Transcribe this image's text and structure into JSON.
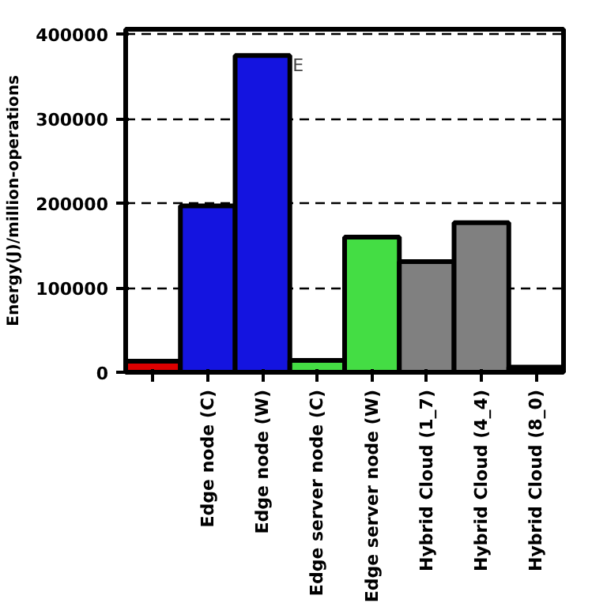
{
  "chart_data": {
    "type": "bar",
    "ylabel": "Energy(J)/million-operations",
    "categories": [
      null,
      "Edge node (C)",
      "Edge node (W)",
      "Edge server node (C)",
      "Edge server node (W)",
      "Hybrid Cloud (1_7)",
      "Hybrid Cloud (4_4)",
      "Hybrid Cloud (8_0)"
    ],
    "values": [
      13000,
      197000,
      375000,
      14000,
      160000,
      131000,
      177000,
      6000
    ],
    "colors": [
      "#dd0000",
      "#1414e0",
      "#1414e0",
      "#44dd44",
      "#44dd44",
      "#808080",
      "#808080",
      "#000000"
    ],
    "ylim": [
      0,
      406000
    ],
    "yticks": [
      0,
      100000,
      200000,
      300000,
      400000
    ],
    "grid": "y",
    "line_style": "dashed",
    "annotations": [
      {
        "text": "E",
        "x": "Edge node (W)",
        "y": 375000
      }
    ]
  }
}
